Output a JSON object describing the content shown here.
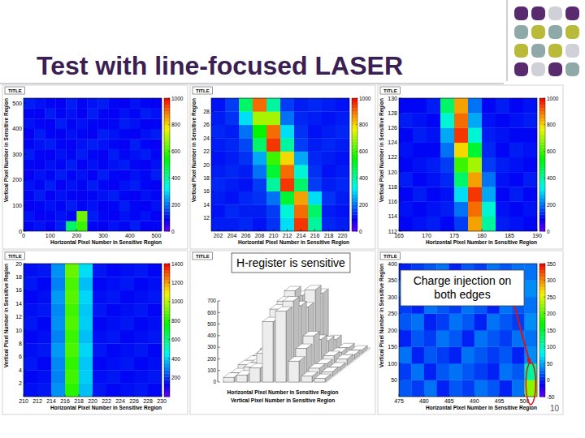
{
  "slide": {
    "title": "Test with line-focused LASER",
    "page": "10"
  },
  "chart_data": [
    {
      "type": "heatmap",
      "panel_title": "TITLE",
      "x_label": "Horizontal Pixel Number in Sensitive Region",
      "y_label": "Vertical Pixel Number in Sensitive Region",
      "xlim": [
        0,
        520
      ],
      "ylim": [
        0,
        520
      ],
      "xticks": [
        0,
        100,
        200,
        300,
        400,
        500
      ],
      "yticks": [
        0,
        100,
        200,
        300,
        400,
        500
      ],
      "zlim": [
        0,
        1000
      ],
      "zticks": [
        0,
        200,
        400,
        600,
        800,
        1000
      ],
      "cells": [
        [
          100,
          110,
          90,
          120,
          450,
          600,
          100,
          90,
          110,
          100,
          120,
          90,
          100
        ],
        [
          110,
          90,
          100,
          110,
          100,
          650,
          120,
          100,
          90,
          110,
          100,
          110,
          90
        ],
        [
          90,
          100,
          110,
          100,
          120,
          100,
          110,
          90,
          100,
          120,
          100,
          90,
          110
        ],
        [
          100,
          120,
          90,
          110,
          100,
          90,
          100,
          110,
          120,
          100,
          90,
          110,
          100
        ],
        [
          110,
          100,
          120,
          90,
          110,
          100,
          120,
          100,
          90,
          110,
          120,
          100,
          90
        ],
        [
          90,
          110,
          100,
          120,
          100,
          110,
          90,
          120,
          100,
          90,
          110,
          100,
          120
        ],
        [
          100,
          90,
          110,
          100,
          120,
          90,
          110,
          100,
          110,
          120,
          100,
          90,
          110
        ],
        [
          120,
          100,
          90,
          110,
          100,
          120,
          100,
          90,
          120,
          100,
          110,
          120,
          100
        ],
        [
          100,
          110,
          120,
          100,
          90,
          110,
          120,
          110,
          100,
          90,
          120,
          100,
          90
        ],
        [
          90,
          120,
          100,
          90,
          110,
          100,
          90,
          120,
          110,
          100,
          90,
          110,
          120
        ],
        [
          110,
          100,
          90,
          120,
          100,
          110,
          100,
          90,
          100,
          120,
          110,
          90,
          100
        ],
        [
          100,
          90,
          120,
          100,
          110,
          90,
          120,
          100,
          90,
          110,
          100,
          120,
          110
        ],
        [
          120,
          110,
          100,
          90,
          120,
          100,
          110,
          120,
          100,
          90,
          110,
          100,
          90
        ]
      ]
    },
    {
      "type": "heatmap",
      "panel_title": "TITLE",
      "x_label": "Horizontal Pixel Number in Sensitive Region",
      "y_label": "Vertical Pixel Number in Sensitive Region",
      "xlim": [
        201,
        221
      ],
      "ylim": [
        10,
        30
      ],
      "xticks": [
        202,
        204,
        206,
        208,
        210,
        212,
        214,
        216,
        218,
        220
      ],
      "yticks": [
        12,
        14,
        16,
        18,
        20,
        22,
        24,
        26,
        28
      ],
      "zlim": [
        0,
        1000
      ],
      "zticks": [
        0,
        200,
        400,
        600,
        800,
        1000
      ],
      "cells": [
        [
          120,
          120,
          130,
          110,
          140,
          300,
          950,
          400,
          130,
          120
        ],
        [
          110,
          130,
          120,
          120,
          150,
          350,
          900,
          450,
          120,
          110
        ],
        [
          120,
          110,
          130,
          140,
          200,
          500,
          850,
          300,
          140,
          120
        ],
        [
          130,
          120,
          110,
          150,
          400,
          950,
          450,
          150,
          120,
          130
        ],
        [
          120,
          130,
          120,
          200,
          500,
          900,
          350,
          140,
          110,
          120
        ],
        [
          110,
          120,
          140,
          250,
          600,
          800,
          250,
          130,
          120,
          110
        ],
        [
          120,
          130,
          160,
          450,
          950,
          400,
          150,
          120,
          130,
          120
        ],
        [
          130,
          120,
          200,
          550,
          900,
          300,
          140,
          110,
          120,
          130
        ],
        [
          120,
          140,
          300,
          700,
          700,
          200,
          130,
          120,
          110,
          120
        ],
        [
          110,
          150,
          450,
          900,
          400,
          150,
          120,
          130,
          120,
          110
        ]
      ]
    },
    {
      "type": "heatmap",
      "panel_title": "TITLE",
      "x_label": "Horizontal Pixel Number in Sensitive Region",
      "y_label": "Vertical Pixel Number in Sensitive Region",
      "xlim": [
        165,
        190
      ],
      "ylim": [
        112,
        130
      ],
      "xticks": [
        165,
        170,
        175,
        180,
        185,
        190
      ],
      "yticks": [
        112,
        114,
        116,
        118,
        120,
        122,
        124,
        126,
        128,
        130
      ],
      "zlim": [
        0,
        1000
      ],
      "zticks": [
        0,
        200,
        400,
        600,
        800,
        1000
      ],
      "cells": [
        [
          100,
          110,
          120,
          100,
          150,
          850,
          400,
          120,
          110,
          100
        ],
        [
          110,
          100,
          110,
          120,
          200,
          900,
          350,
          110,
          100,
          110
        ],
        [
          100,
          120,
          100,
          110,
          300,
          950,
          250,
          100,
          120,
          100
        ],
        [
          120,
          100,
          110,
          130,
          450,
          850,
          200,
          110,
          100,
          120
        ],
        [
          100,
          110,
          120,
          150,
          600,
          700,
          150,
          120,
          110,
          100
        ],
        [
          110,
          100,
          100,
          200,
          800,
          500,
          130,
          100,
          120,
          110
        ],
        [
          100,
          120,
          110,
          250,
          950,
          350,
          120,
          110,
          100,
          100
        ],
        [
          120,
          110,
          100,
          350,
          900,
          250,
          110,
          100,
          110,
          120
        ],
        [
          100,
          100,
          120,
          450,
          850,
          200,
          100,
          120,
          100,
          110
        ]
      ]
    },
    {
      "type": "heatmap",
      "panel_title": "TITLE",
      "x_label": "Horizontal Pixel Number in Sensitive Region",
      "y_label": "Vertical Pixel Number in Sensitive Region",
      "xlim": [
        210,
        230
      ],
      "ylim": [
        0,
        20
      ],
      "xticks": [
        210,
        212,
        214,
        216,
        218,
        220,
        222,
        224,
        226,
        228,
        230
      ],
      "yticks": [
        2,
        4,
        6,
        8,
        10,
        12,
        14,
        16,
        18,
        20
      ],
      "zlim": [
        0,
        1400
      ],
      "zticks": [
        200,
        400,
        600,
        800,
        1000,
        1200,
        1400
      ],
      "cells": [
        [
          150,
          160,
          320,
          820,
          380,
          160,
          140,
          150,
          160,
          140
        ],
        [
          140,
          150,
          300,
          850,
          400,
          150,
          160,
          140,
          150,
          160
        ],
        [
          160,
          140,
          310,
          830,
          390,
          140,
          150,
          160,
          140,
          150
        ],
        [
          150,
          160,
          330,
          860,
          410,
          160,
          140,
          150,
          160,
          140
        ],
        [
          140,
          150,
          300,
          840,
          380,
          150,
          160,
          140,
          150,
          160
        ],
        [
          160,
          140,
          320,
          870,
          400,
          140,
          150,
          160,
          140,
          150
        ],
        [
          150,
          160,
          310,
          850,
          390,
          160,
          140,
          150,
          160,
          140
        ],
        [
          140,
          150,
          330,
          880,
          410,
          150,
          160,
          140,
          150,
          160
        ],
        [
          160,
          140,
          300,
          860,
          380,
          140,
          150,
          160,
          140,
          150
        ],
        [
          150,
          160,
          320,
          900,
          420,
          160,
          140,
          150,
          160,
          140
        ]
      ]
    },
    {
      "type": "lego",
      "panel_title": "TITLE",
      "annotation": "H-register is sensitive",
      "x_label": "Horizontal Pixel Number in Sensitive Region",
      "y_label": "Vertical Pixel Number in Sensitive Region",
      "zlim": [
        0,
        700
      ],
      "zticks": [
        0,
        100,
        200,
        300,
        400,
        500,
        600,
        700
      ],
      "cells": [
        [
          40,
          60,
          120,
          520,
          610,
          180,
          50,
          30
        ],
        [
          30,
          80,
          200,
          580,
          650,
          240,
          70,
          40
        ],
        [
          50,
          70,
          260,
          600,
          560,
          300,
          60,
          30
        ],
        [
          40,
          90,
          300,
          640,
          500,
          220,
          80,
          50
        ],
        [
          30,
          60,
          220,
          550,
          600,
          160,
          60,
          40
        ],
        [
          40,
          50,
          150,
          480,
          520,
          120,
          50,
          30
        ]
      ]
    },
    {
      "type": "heatmap",
      "panel_title": "TITLE",
      "annotation": "Charge injection on both edges",
      "x_label": "Horizontal Pixel Number in Sensitive Region",
      "y_label": "Vertical Pixel Number in Sensitive Region",
      "xlim": [
        475,
        502.5
      ],
      "ylim": [
        0,
        400
      ],
      "xticks": [
        475,
        480,
        485,
        490,
        495,
        500
      ],
      "yticks": [
        50,
        100,
        150,
        200,
        250,
        300,
        350,
        400
      ],
      "zlim": [
        -50,
        350
      ],
      "zticks": [
        -50,
        0,
        50,
        100,
        150,
        200,
        250,
        300,
        350
      ],
      "cells": [
        [
          20,
          10,
          30,
          0,
          20,
          10,
          30,
          20,
          0,
          30,
          220
        ],
        [
          10,
          30,
          0,
          20,
          30,
          20,
          10,
          0,
          30,
          20,
          110
        ],
        [
          30,
          0,
          20,
          10,
          0,
          30,
          20,
          10,
          20,
          0,
          40
        ],
        [
          0,
          20,
          10,
          30,
          20,
          0,
          30,
          20,
          10,
          30,
          30
        ],
        [
          20,
          30,
          0,
          10,
          30,
          20,
          0,
          30,
          20,
          10,
          40
        ],
        [
          10,
          0,
          30,
          20,
          10,
          30,
          20,
          0,
          30,
          20,
          30
        ],
        [
          30,
          20,
          10,
          0,
          20,
          10,
          30,
          20,
          0,
          10,
          40
        ],
        [
          0,
          10,
          20,
          30,
          0,
          20,
          10,
          30,
          20,
          30,
          30
        ]
      ]
    }
  ]
}
